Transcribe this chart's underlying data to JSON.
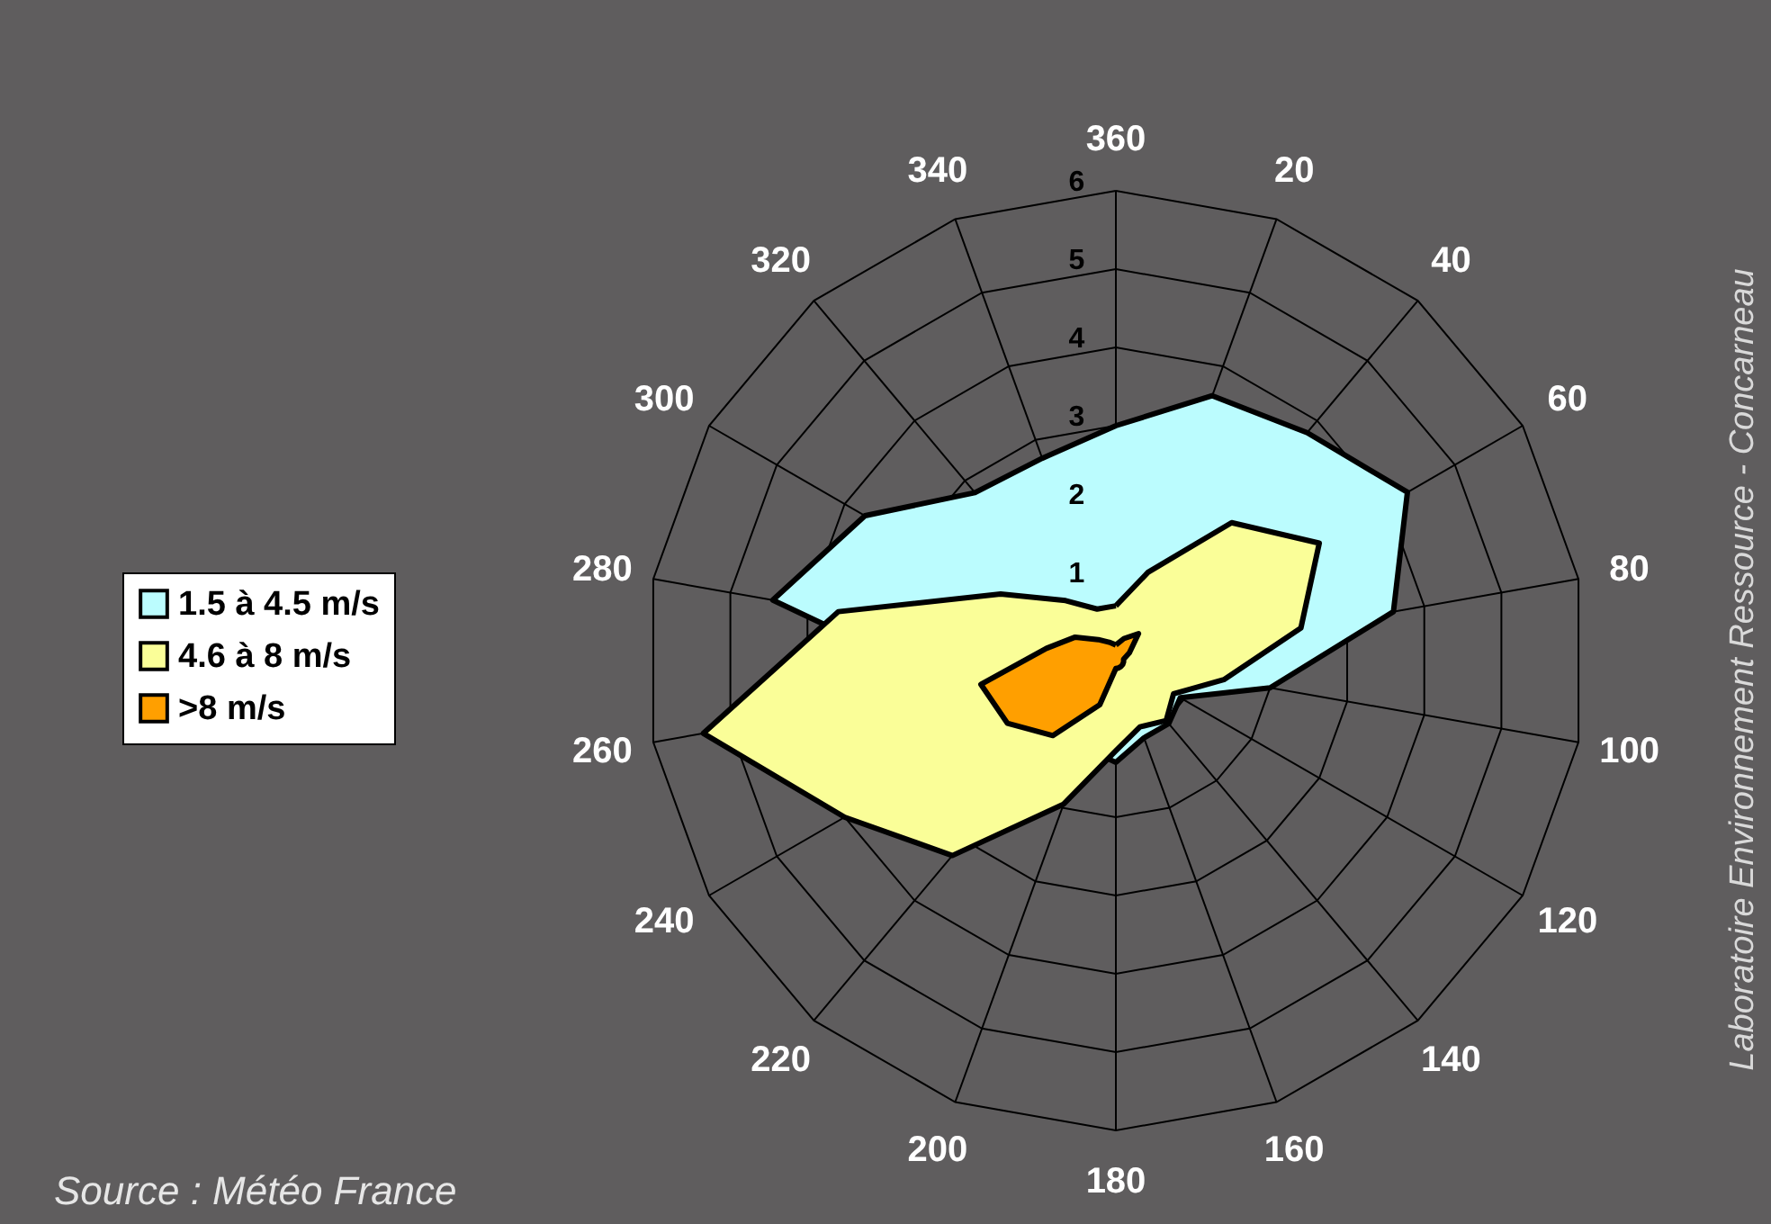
{
  "chart_data": {
    "type": "radar",
    "categories": [
      "360",
      "20",
      "40",
      "60",
      "80",
      "100",
      "120",
      "140",
      "160",
      "180",
      "200",
      "220",
      "240",
      "260",
      "280",
      "300",
      "320",
      "340"
    ],
    "series": [
      {
        "name": "1.5 à 4.5 m/s",
        "color": "#bbfcfe",
        "values": [
          3.0,
          3.6,
          3.8,
          4.3,
          3.6,
          2.0,
          0.95,
          1.05,
          1.05,
          1.3,
          null,
          null,
          null,
          null,
          4.45,
          3.7,
          2.8,
          2.75
        ]
      },
      {
        "name": "4.6 à 8 m/s",
        "color": "#fafe98",
        "values": [
          0.7,
          1.2,
          2.3,
          3.0,
          2.4,
          1.4,
          0.85,
          1.0,
          0.9,
          1.15,
          1.95,
          3.25,
          4.0,
          5.35,
          3.6,
          1.7,
          1.0,
          0.7
        ]
      },
      {
        "name": ">8 m/s",
        "color": "#ff9f00",
        "values": [
          0.2,
          0.3,
          0.45,
          0.2,
          0.1,
          0.1,
          0.1,
          0.1,
          0.1,
          0.1,
          0.6,
          1.25,
          1.6,
          1.75,
          0.9,
          0.6,
          0.35,
          0.25
        ]
      }
    ],
    "ylim": [
      0,
      6
    ],
    "yticks": [
      1,
      2,
      3,
      4,
      5,
      6
    ],
    "grid": true,
    "legend": "left",
    "annotations": [
      "Source : Météo France",
      "Laboratoire Environnement Ressource - Concarneau"
    ]
  }
}
